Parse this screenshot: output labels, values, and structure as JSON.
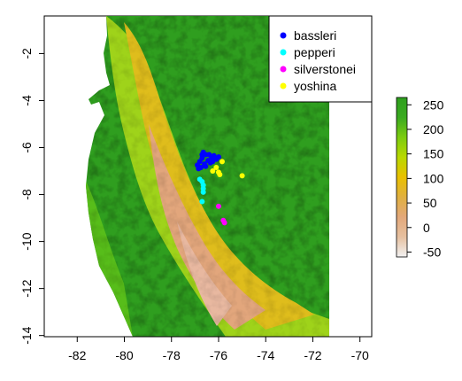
{
  "chart_data": {
    "type": "scatter",
    "subtype": "raster-map-with-points",
    "xlim": [
      -83.4,
      -69.5
    ],
    "ylim": [
      -14.05,
      -0.4
    ],
    "x_ticks": [
      -82,
      -80,
      -78,
      -76,
      -74,
      -72,
      -70
    ],
    "y_ticks": [
      -2,
      -4,
      -6,
      -8,
      -10,
      -12,
      -14
    ],
    "x_tick_labels": [
      "-82",
      "-80",
      "-78",
      "-76",
      "-74",
      "-72",
      "-70"
    ],
    "y_tick_labels": [
      "-2",
      "-4",
      "-6",
      "-8",
      "-10",
      "-12",
      "-14"
    ],
    "legend_placement": "top-right",
    "legend": [
      {
        "name": "bassleri",
        "color": "#0000ff"
      },
      {
        "name": "pepperi",
        "color": "#00ffff"
      },
      {
        "name": "silverstonei",
        "color": "#ff00ff"
      },
      {
        "name": "yoshina",
        "color": "#ffff00"
      }
    ],
    "series": [
      {
        "name": "bassleri",
        "color": "#0000ff",
        "points": [
          [
            -76.65,
            -6.2
          ],
          [
            -76.55,
            -6.3
          ],
          [
            -76.7,
            -6.45
          ],
          [
            -76.8,
            -6.6
          ],
          [
            -76.9,
            -6.75
          ],
          [
            -76.75,
            -6.85
          ],
          [
            -76.6,
            -6.7
          ],
          [
            -76.45,
            -6.55
          ],
          [
            -76.3,
            -6.45
          ],
          [
            -76.2,
            -6.35
          ],
          [
            -76.1,
            -6.5
          ],
          [
            -76.0,
            -6.4
          ],
          [
            -76.35,
            -6.65
          ],
          [
            -76.55,
            -6.8
          ],
          [
            -76.85,
            -6.9
          ],
          [
            -76.7,
            -6.3
          ],
          [
            -76.4,
            -6.3
          ],
          [
            -76.25,
            -6.6
          ]
        ]
      },
      {
        "name": "pepperi",
        "color": "#00ffff",
        "points": [
          [
            -76.8,
            -7.35
          ],
          [
            -76.7,
            -7.45
          ],
          [
            -76.65,
            -7.6
          ],
          [
            -76.65,
            -7.75
          ],
          [
            -76.65,
            -7.9
          ],
          [
            -76.7,
            -8.3
          ]
        ]
      },
      {
        "name": "silverstonei",
        "color": "#ff00ff",
        "points": [
          [
            -76.0,
            -8.5
          ],
          [
            -75.8,
            -9.1
          ],
          [
            -75.75,
            -9.2
          ]
        ]
      },
      {
        "name": "yoshina",
        "color": "#ffff00",
        "points": [
          [
            -75.85,
            -6.6
          ],
          [
            -76.1,
            -6.85
          ],
          [
            -76.25,
            -7.0
          ],
          [
            -76.0,
            -7.05
          ],
          [
            -75.95,
            -7.15
          ],
          [
            -75.0,
            -7.2
          ]
        ]
      }
    ],
    "colorbar": {
      "ticks": [
        250,
        200,
        150,
        100,
        50,
        0,
        -50
      ],
      "tick_labels": [
        "250",
        "200",
        "150",
        "100",
        "50",
        "0",
        "-50"
      ],
      "range": [
        -60,
        265
      ],
      "gradient_colors": [
        "#f2f2f2",
        "#e6c0a0",
        "#e3a87a",
        "#e0b040",
        "#e9c000",
        "#b9d800",
        "#7ccc10",
        "#3aaa20",
        "#2e9f1e"
      ]
    }
  }
}
